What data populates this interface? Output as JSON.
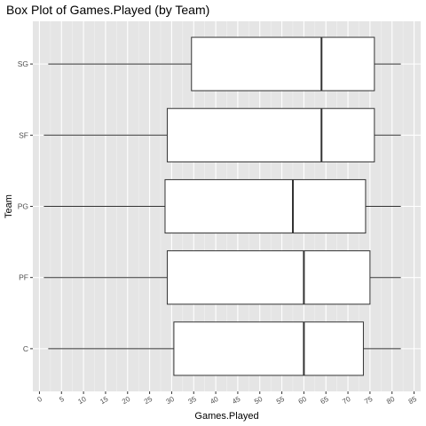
{
  "chart_data": {
    "type": "boxplot",
    "orientation": "horizontal",
    "title": "Box Plot of Games.Played (by Team)",
    "xlabel": "Games.Played",
    "ylabel": "Team",
    "xlim": [
      -1.5,
      86.5
    ],
    "x_ticks": [
      0,
      5,
      10,
      15,
      20,
      25,
      30,
      35,
      40,
      45,
      50,
      55,
      60,
      65,
      70,
      75,
      80,
      85
    ],
    "grid": true,
    "background": "#e5e5e5",
    "categories": [
      "C",
      "PF",
      "PG",
      "SF",
      "SG"
    ],
    "boxes": [
      {
        "category": "C",
        "min": 2,
        "q1": 30.5,
        "median": 60,
        "q3": 73.5,
        "max": 82
      },
      {
        "category": "PF",
        "min": 1,
        "q1": 29,
        "median": 60,
        "q3": 75,
        "max": 82
      },
      {
        "category": "PG",
        "min": 1,
        "q1": 28.5,
        "median": 57.5,
        "q3": 74,
        "max": 82
      },
      {
        "category": "SF",
        "min": 1,
        "q1": 29,
        "median": 64,
        "q3": 76,
        "max": 82
      },
      {
        "category": "SG",
        "min": 2,
        "q1": 34.5,
        "median": 64,
        "q3": 76,
        "max": 82
      }
    ]
  }
}
